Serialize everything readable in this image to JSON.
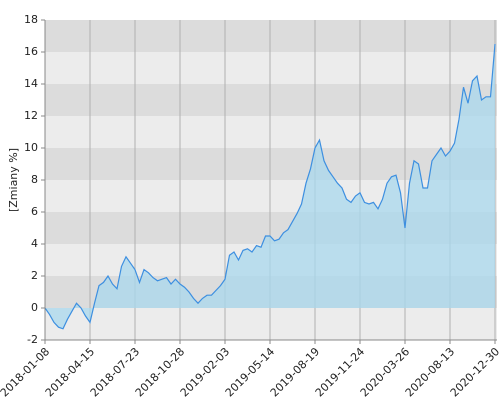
{
  "chart_data": {
    "type": "area",
    "y_label": "[Zmiany %]",
    "categories": [
      "2018-01-08",
      null,
      null,
      null,
      null,
      null,
      null,
      null,
      null,
      null,
      "2018-04-15",
      null,
      null,
      null,
      null,
      null,
      null,
      null,
      null,
      null,
      "2018-07-23",
      null,
      null,
      null,
      null,
      null,
      null,
      null,
      null,
      null,
      "2018-10-28",
      null,
      null,
      null,
      null,
      null,
      null,
      null,
      null,
      null,
      "2019-02-03",
      null,
      null,
      null,
      null,
      null,
      null,
      null,
      null,
      null,
      "2019-05-14",
      null,
      null,
      null,
      null,
      null,
      null,
      null,
      null,
      null,
      "2019-08-19",
      null,
      null,
      null,
      null,
      null,
      null,
      null,
      null,
      null,
      "2019-11-24",
      null,
      null,
      null,
      null,
      null,
      null,
      null,
      null,
      null,
      "2020-03-26",
      null,
      null,
      null,
      null,
      null,
      null,
      null,
      null,
      null,
      "2020-08-13",
      null,
      null,
      null,
      null,
      null,
      null,
      null,
      null,
      null,
      "2020-12-30"
    ],
    "values": [
      0,
      -0.4,
      -0.9,
      -1.2,
      -1.3,
      -0.7,
      -0.2,
      0.3,
      0,
      -0.5,
      -0.9,
      0.3,
      1.4,
      1.6,
      2,
      1.5,
      1.2,
      2.6,
      3.2,
      2.8,
      2.4,
      1.6,
      2.4,
      2.2,
      1.9,
      1.7,
      1.8,
      1.9,
      1.5,
      1.8,
      1.5,
      1.3,
      1,
      0.6,
      0.3,
      0.6,
      0.8,
      0.8,
      1.1,
      1.4,
      1.8,
      3.3,
      3.5,
      3,
      3.6,
      3.7,
      3.5,
      3.9,
      3.8,
      4.5,
      4.5,
      4.2,
      4.3,
      4.7,
      4.9,
      5.4,
      5.9,
      6.5,
      7.8,
      8.7,
      10,
      10.5,
      9.2,
      8.6,
      8.2,
      7.8,
      7.5,
      6.8,
      6.6,
      7,
      7.2,
      6.6,
      6.5,
      6.6,
      6.2,
      6.8,
      7.8,
      8.2,
      8.3,
      7.2,
      5,
      7.8,
      9.2,
      9,
      7.5,
      7.5,
      9.2,
      9.6,
      10,
      9.5,
      9.8,
      10.3,
      11.8,
      13.8,
      12.8,
      14.2,
      14.5,
      13,
      13.2,
      13.2,
      16.5
    ],
    "color": "#3d8fe0",
    "fill": "#a9d8ee",
    "ylim": [
      -2,
      18
    ],
    "yticks": [
      -2,
      0,
      2,
      4,
      6,
      8,
      10,
      12,
      14,
      16,
      18
    ],
    "grid": true
  }
}
